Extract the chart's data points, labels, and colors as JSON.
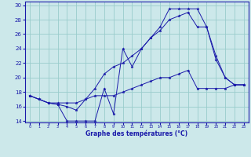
{
  "xlabel": "Graphe des températures (°C)",
  "background_color": "#cce8ea",
  "grid_color": "#99cccc",
  "line_color": "#1a1aaa",
  "xlim_min": -0.5,
  "xlim_max": 23.5,
  "ylim_min": 13.8,
  "ylim_max": 30.5,
  "yticks": [
    14,
    16,
    18,
    20,
    22,
    24,
    26,
    28,
    30
  ],
  "xticks": [
    0,
    1,
    2,
    3,
    4,
    5,
    6,
    7,
    8,
    9,
    10,
    11,
    12,
    13,
    14,
    15,
    16,
    17,
    18,
    19,
    20,
    21,
    22,
    23
  ],
  "s1_x": [
    0,
    1,
    2,
    3,
    4,
    5,
    6,
    7,
    8,
    9,
    10,
    11,
    12,
    13,
    14,
    15,
    16,
    17,
    18,
    19,
    20,
    21,
    22,
    23
  ],
  "s1_y": [
    17.5,
    17.0,
    16.5,
    16.3,
    14.0,
    14.0,
    14.0,
    14.0,
    18.5,
    15.0,
    24.0,
    21.5,
    24.0,
    25.5,
    27.0,
    29.5,
    29.5,
    29.5,
    29.5,
    27.0,
    22.5,
    20.0,
    19.0,
    19.0
  ],
  "s2_x": [
    0,
    1,
    2,
    3,
    4,
    5,
    6,
    7,
    8,
    9,
    10,
    11,
    12,
    13,
    14,
    15,
    16,
    17,
    18,
    19,
    20,
    21,
    22,
    23
  ],
  "s2_y": [
    17.5,
    17.0,
    16.5,
    16.3,
    16.0,
    15.5,
    17.0,
    18.5,
    20.5,
    21.5,
    22.0,
    23.0,
    24.0,
    25.5,
    26.5,
    28.0,
    28.5,
    29.0,
    27.0,
    27.0,
    23.0,
    20.0,
    19.0,
    19.0
  ],
  "s3_x": [
    0,
    1,
    2,
    3,
    4,
    5,
    6,
    7,
    8,
    9,
    10,
    11,
    12,
    13,
    14,
    15,
    16,
    17,
    18,
    19,
    20,
    21,
    22,
    23
  ],
  "s3_y": [
    17.5,
    17.0,
    16.5,
    16.5,
    16.5,
    16.5,
    17.0,
    17.5,
    17.5,
    17.5,
    18.0,
    18.5,
    19.0,
    19.5,
    20.0,
    20.0,
    20.5,
    21.0,
    18.5,
    18.5,
    18.5,
    18.5,
    19.0,
    19.0
  ]
}
